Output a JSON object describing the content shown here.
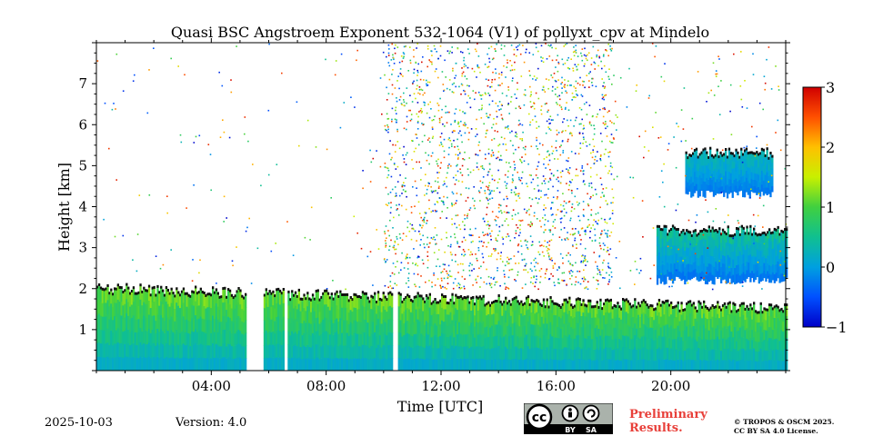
{
  "chart_data": {
    "type": "heatmap",
    "title": "Quasi BSC Angstroem Exponent 532-1064 (V1) of pollyxt_cpv at Mindelo",
    "xlabel": "Time [UTC]",
    "ylabel": "Height [km]",
    "x_unit": "hours UTC",
    "xlim": [
      0,
      24
    ],
    "ylim": [
      0,
      8
    ],
    "xticks": [
      4,
      8,
      12,
      16,
      20
    ],
    "xtick_labels": [
      "04:00",
      "08:00",
      "12:00",
      "16:00",
      "20:00"
    ],
    "yticks": [
      1,
      2,
      3,
      4,
      5,
      6,
      7
    ],
    "ytick_labels": [
      "1",
      "2",
      "3",
      "4",
      "5",
      "6",
      "7"
    ],
    "colorbar": {
      "range": [
        -1,
        3
      ],
      "ticks": [
        -1,
        0,
        1,
        2,
        3
      ],
      "tick_labels": [
        "−1",
        "0",
        "1",
        "2",
        "3"
      ],
      "colormap": "jet"
    },
    "layers": [
      {
        "name": "boundary-layer",
        "t": [
          0,
          24
        ],
        "base_km": 0,
        "top_km_start": 2.0,
        "top_km_end": 1.5,
        "value_range": [
          -0.3,
          1.3
        ]
      },
      {
        "name": "elevated-aerosol-layer",
        "t": [
          19.5,
          24
        ],
        "base_km": 2.2,
        "top_km": 3.4,
        "value_range": [
          -0.6,
          0.6
        ]
      },
      {
        "name": "upper-cloud-layer",
        "t": [
          20.5,
          23.5
        ],
        "base_km": 4.3,
        "top_km": 5.3,
        "value_range": [
          -0.5,
          0.4
        ]
      }
    ],
    "gaps_utc": [
      [
        5.2,
        5.8
      ],
      [
        10.3,
        10.45
      ],
      [
        6.5,
        6.6
      ]
    ],
    "noise_region": {
      "t": [
        10,
        18
      ],
      "height_km": [
        2,
        8
      ],
      "value_range": [
        -1,
        3
      ]
    }
  },
  "footer": {
    "date": "2025-10-03",
    "version": "Version: 4.0",
    "preliminary_line1": "Preliminary",
    "preliminary_line2": "Results.",
    "copyright_line1": "© TROPOS & OSCM 2025.",
    "copyright_line2": "CC BY SA 4.0 License.",
    "cc_label": "cc",
    "by_label": "BY",
    "sa_label": "SA"
  },
  "colors": {
    "preliminary": "#e8403a",
    "badge_bg": "#aab2ab",
    "badge_dark": "#000000"
  }
}
